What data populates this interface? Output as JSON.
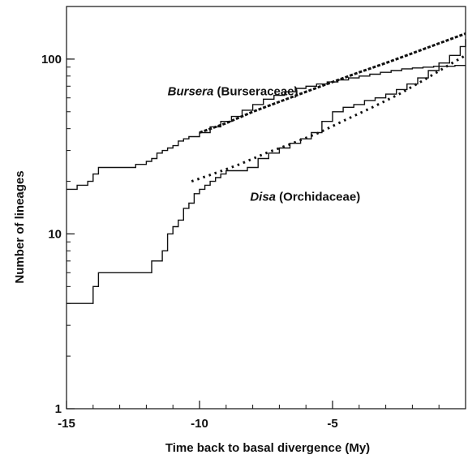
{
  "chart_data": {
    "type": "line",
    "xlabel": "Time back to basal divergence (My)",
    "ylabel": "Number of lineages",
    "xlim": [
      -15,
      0
    ],
    "ylim": [
      1,
      200
    ],
    "yscale": "log",
    "grid": false,
    "xticks": [
      -15,
      -10,
      -5
    ],
    "xtick_labels": [
      "-15",
      "-10",
      "-5"
    ],
    "yticks": [
      1,
      10,
      100
    ],
    "ytick_labels": [
      "1",
      "10",
      "100"
    ],
    "annotations": [
      {
        "italic": "Bursera",
        "text": " (Burseraceae)",
        "x": -11.2,
        "y": 62
      },
      {
        "italic": "Disa",
        "text": "  (Orchidaceae)",
        "x": -8.1,
        "y": 15.5
      }
    ],
    "series": [
      {
        "id": "bursera-observed",
        "style": "solid-step",
        "x": [
          -15.0,
          -14.6,
          -14.2,
          -14.0,
          -13.8,
          -12.4,
          -12.0,
          -11.8,
          -11.6,
          -11.4,
          -11.2,
          -11.0,
          -10.8,
          -10.6,
          -10.4,
          -10.0,
          -9.6,
          -9.2,
          -8.8,
          -8.4,
          -8.0,
          -7.6,
          -7.2,
          -6.8,
          -6.4,
          -6.0,
          -5.6,
          -5.2,
          -4.8,
          -4.4,
          -4.0,
          -3.6,
          -3.2,
          -2.8,
          -2.4,
          -2.0,
          -1.6,
          -1.2,
          -0.8,
          -0.4,
          0.0
        ],
        "y": [
          18,
          19,
          20,
          22,
          24,
          25,
          26,
          27,
          29,
          30,
          31,
          32,
          34,
          35,
          36,
          38,
          41,
          44,
          47,
          51,
          55,
          59,
          62,
          65,
          68,
          70,
          72,
          74,
          76,
          78,
          80,
          82,
          84,
          86,
          88,
          89,
          90,
          91,
          91,
          92,
          92
        ]
      },
      {
        "id": "bursera-expected",
        "style": "dashed",
        "x": [
          -10.0,
          -9.0,
          -8.0,
          -7.0,
          -6.0,
          -5.0,
          -4.0,
          -3.0,
          -2.0,
          -1.0,
          0.0
        ],
        "y": [
          38,
          43,
          50,
          57,
          65,
          74,
          84,
          95,
          108,
          123,
          140
        ]
      },
      {
        "id": "disa-observed",
        "style": "solid-step",
        "x": [
          -15.0,
          -14.0,
          -13.8,
          -12.2,
          -11.8,
          -11.4,
          -11.2,
          -11.0,
          -10.8,
          -10.6,
          -10.4,
          -10.2,
          -10.0,
          -9.8,
          -9.6,
          -9.4,
          -9.2,
          -9.0,
          -8.6,
          -8.2,
          -7.8,
          -7.4,
          -7.0,
          -6.6,
          -6.2,
          -5.8,
          -5.4,
          -5.0,
          -4.6,
          -4.2,
          -3.8,
          -3.4,
          -3.0,
          -2.6,
          -2.2,
          -1.8,
          -1.4,
          -1.0,
          -0.6,
          -0.2,
          0.0
        ],
        "y": [
          4,
          5,
          6,
          6,
          7,
          8,
          10,
          11,
          12,
          14,
          15,
          17,
          18,
          19,
          20,
          21,
          22,
          23,
          23,
          24,
          27,
          29,
          31,
          33,
          35,
          38,
          44,
          50,
          53,
          55,
          58,
          60,
          63,
          67,
          72,
          78,
          86,
          95,
          105,
          118,
          130
        ]
      },
      {
        "id": "disa-expected",
        "style": "dotted",
        "x": [
          -10.3,
          -9.5,
          -8.5,
          -7.5,
          -6.5,
          -5.5,
          -4.5,
          -3.5,
          -2.5,
          -1.5,
          -0.5,
          0.0
        ],
        "y": [
          20,
          22,
          25,
          29,
          33,
          38,
          45,
          53,
          63,
          77,
          95,
          105
        ]
      }
    ]
  }
}
